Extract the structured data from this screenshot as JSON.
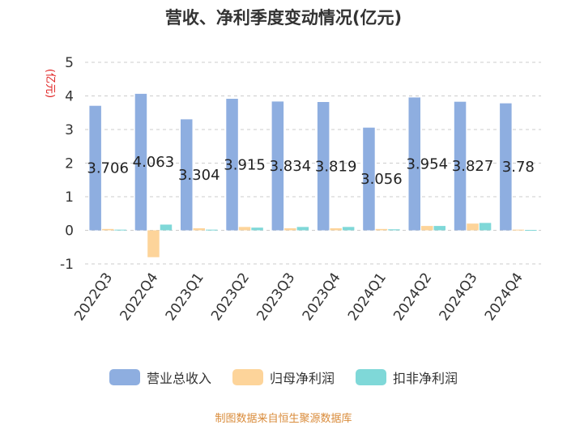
{
  "chart_data": {
    "type": "bar",
    "title": "营收、净利季度变动情况(亿元)",
    "ylabel": "(亿元)",
    "ylim": [
      -1,
      5
    ],
    "yticks": [
      -1,
      0,
      1,
      2,
      3,
      4,
      5
    ],
    "categories": [
      "2022Q3",
      "2022Q4",
      "2023Q1",
      "2023Q2",
      "2023Q3",
      "2023Q4",
      "2024Q1",
      "2024Q2",
      "2024Q3",
      "2024Q4"
    ],
    "series": [
      {
        "name": "营业总收入",
        "color": "#8eaee0",
        "values": [
          3.706,
          4.063,
          3.304,
          3.915,
          3.834,
          3.819,
          3.056,
          3.954,
          3.827,
          3.78
        ],
        "labels": [
          "3.706",
          "4.063",
          "3.304",
          "3.915",
          "3.834",
          "3.819",
          "3.056",
          "3.954",
          "3.827",
          "3.78"
        ]
      },
      {
        "name": "归母净利润",
        "color": "#fdd49a",
        "values": [
          0.04,
          -0.8,
          0.06,
          0.1,
          0.06,
          0.06,
          0.04,
          0.13,
          0.2,
          0.02
        ]
      },
      {
        "name": "扣非净利润",
        "color": "#7fd8d8",
        "values": [
          0.02,
          0.17,
          0.02,
          0.08,
          0.1,
          0.1,
          0.03,
          0.13,
          0.22,
          0.01
        ]
      }
    ],
    "legend_position": "bottom",
    "grid": true
  },
  "footer": {
    "source": "制图数据来自恒生聚源数据库"
  }
}
